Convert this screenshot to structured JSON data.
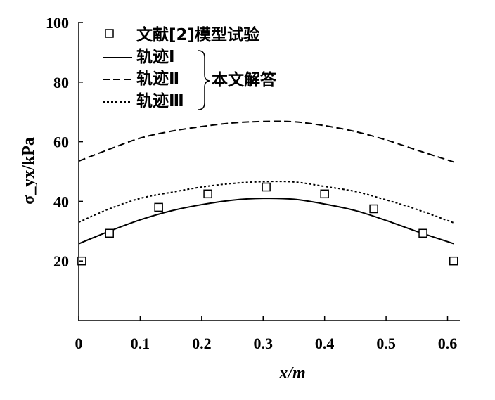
{
  "chart_data": {
    "type": "line",
    "xlabel": "x/m",
    "ylabel": "σ_yx/kPa",
    "xlim": [
      0,
      0.62
    ],
    "ylim": [
      0,
      100
    ],
    "x_ticks": [
      "0",
      "0.1",
      "0.2",
      "0.3",
      "0.4",
      "0.5",
      "0.6"
    ],
    "y_ticks": [
      "20",
      "40",
      "60",
      "80",
      "100"
    ],
    "legend": {
      "placement": "top-left",
      "experiment_label": "文献[2]模型试验",
      "brace_label": "本文解答"
    },
    "series": [
      {
        "name": "轨迹Ⅰ",
        "style": "solid",
        "x": [
          0.0,
          0.05,
          0.1,
          0.15,
          0.2,
          0.25,
          0.3,
          0.35,
          0.4,
          0.45,
          0.5,
          0.55,
          0.61
        ],
        "y": [
          25.8,
          30.0,
          33.8,
          36.8,
          38.9,
          40.4,
          41.0,
          40.7,
          39.1,
          36.9,
          33.6,
          29.9,
          25.8
        ]
      },
      {
        "name": "轨迹Ⅱ",
        "style": "dashed",
        "x": [
          0.0,
          0.05,
          0.1,
          0.15,
          0.2,
          0.25,
          0.3,
          0.35,
          0.4,
          0.45,
          0.5,
          0.55,
          0.61
        ],
        "y": [
          53.5,
          57.5,
          61.2,
          63.5,
          65.1,
          66.3,
          66.8,
          66.7,
          65.4,
          63.4,
          60.6,
          57.2,
          53.2
        ]
      },
      {
        "name": "轨迹Ⅲ",
        "style": "dotted",
        "x": [
          0.0,
          0.05,
          0.1,
          0.15,
          0.2,
          0.25,
          0.3,
          0.35,
          0.4,
          0.45,
          0.5,
          0.55,
          0.61
        ],
        "y": [
          33.0,
          37.5,
          41.0,
          43.0,
          44.8,
          46.0,
          46.6,
          46.5,
          45.0,
          43.3,
          40.5,
          37.3,
          32.8
        ]
      },
      {
        "name": "文献[2]模型试验",
        "style": "markers",
        "x": [
          0.005,
          0.05,
          0.13,
          0.21,
          0.305,
          0.4,
          0.48,
          0.56,
          0.61
        ],
        "y": [
          20.0,
          29.3,
          38.0,
          42.5,
          44.8,
          42.5,
          37.5,
          29.3,
          20.0
        ]
      }
    ]
  }
}
